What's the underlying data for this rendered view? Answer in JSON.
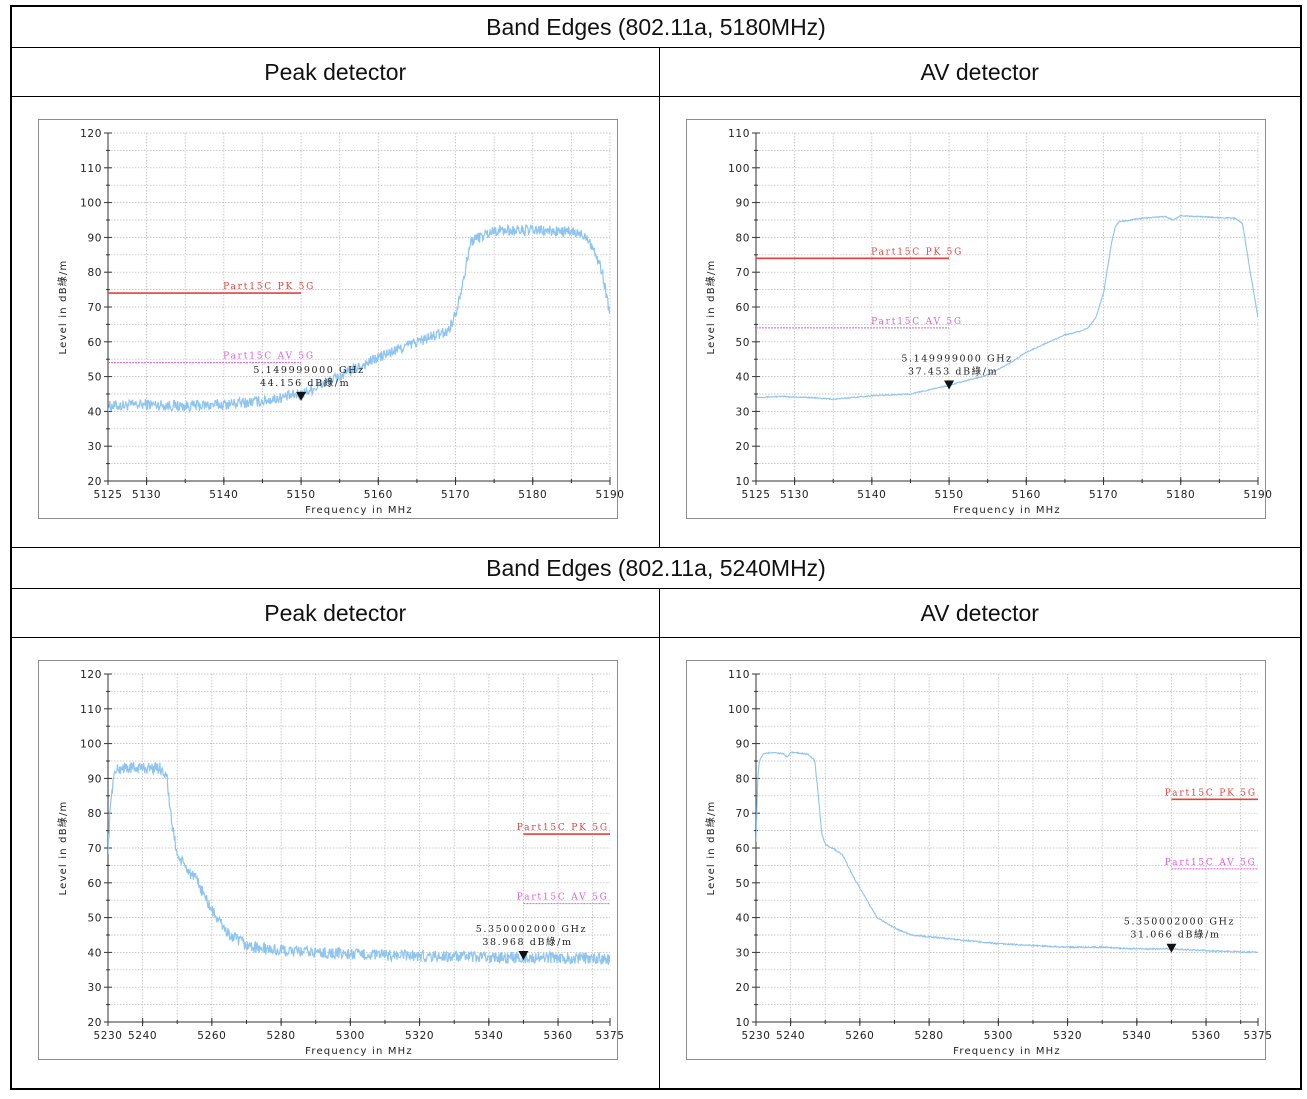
{
  "sections": [
    {
      "title": "Band Edges (802.11a, 5180MHz)",
      "left_label": "Peak detector",
      "right_label": "AV detector"
    },
    {
      "title": "Band Edges (802.11a, 5240MHz)",
      "left_label": "Peak detector",
      "right_label": "AV detector"
    }
  ],
  "colors": {
    "trace": "#8ec4f0",
    "pk_limit": "#e8413c",
    "av_limit": "#e05ce0",
    "marker": "#111111"
  },
  "chart_data": [
    {
      "type": "line",
      "title": "",
      "xlabel": "Frequency in MHz",
      "ylabel": "Level in dB綠/m",
      "xlim": [
        5125,
        5190
      ],
      "ylim": [
        20,
        120
      ],
      "xticks": [
        5125,
        5130,
        5140,
        5150,
        5160,
        5170,
        5180,
        5190
      ],
      "yticks": [
        20,
        30,
        40,
        50,
        60,
        70,
        80,
        90,
        100,
        110,
        120
      ],
      "grid": true,
      "detector": "peak",
      "series": [
        {
          "kind": "trace",
          "noise": 1.6,
          "x": [
            5125,
            5130,
            5135,
            5140,
            5145,
            5150,
            5155,
            5160,
            5165,
            5169,
            5170,
            5171,
            5172,
            5175,
            5180,
            5185,
            5187,
            5188,
            5189,
            5190
          ],
          "y": [
            41.5,
            42,
            41.5,
            42,
            43,
            45,
            50,
            55.5,
            60,
            63,
            68,
            78,
            89,
            92,
            92,
            91.5,
            90.5,
            86,
            80,
            68
          ]
        },
        {
          "kind": "limit",
          "name": "Part15C PK 5G",
          "x": [
            5125,
            5150
          ],
          "y": [
            74,
            74
          ]
        },
        {
          "kind": "limit",
          "name": "Part15C AV 5G",
          "x": [
            5125,
            5150
          ],
          "y": [
            54,
            54
          ]
        }
      ],
      "marker": {
        "x": 5150,
        "y": 44.156,
        "freq_label": "5.149999000 GHz",
        "level_label": "44.156 dB綠/m"
      }
    },
    {
      "type": "line",
      "title": "",
      "xlabel": "Frequency in MHz",
      "ylabel": "Level in dB綠/m",
      "xlim": [
        5125,
        5190
      ],
      "ylim": [
        10,
        110
      ],
      "xticks": [
        5125,
        5130,
        5140,
        5150,
        5160,
        5170,
        5180,
        5190
      ],
      "yticks": [
        10,
        20,
        30,
        40,
        50,
        60,
        70,
        80,
        90,
        100,
        110
      ],
      "grid": true,
      "detector": "average",
      "series": [
        {
          "kind": "trace",
          "noise": 0.15,
          "x": [
            5125,
            5128,
            5132,
            5135,
            5140,
            5145,
            5150,
            5155,
            5158,
            5160,
            5163,
            5165,
            5167,
            5168,
            5169,
            5170,
            5171,
            5171.5,
            5172,
            5175,
            5178,
            5179,
            5180,
            5182,
            5187,
            5188,
            5189,
            5190
          ],
          "y": [
            34,
            34.3,
            34,
            33.5,
            34.5,
            35,
            37.5,
            40.5,
            44,
            47,
            50,
            52,
            53,
            54,
            57,
            64,
            78,
            83,
            84.5,
            85.5,
            86,
            85,
            86.2,
            86,
            85.5,
            84,
            70,
            57
          ]
        },
        {
          "kind": "limit",
          "name": "Part15C PK 5G",
          "x": [
            5125,
            5150
          ],
          "y": [
            74,
            74
          ]
        },
        {
          "kind": "limit",
          "name": "Part15C AV 5G",
          "x": [
            5125,
            5150
          ],
          "y": [
            54,
            54
          ]
        }
      ],
      "marker": {
        "x": 5150,
        "y": 37.453,
        "freq_label": "5.149999000 GHz",
        "level_label": "37.453 dB綠/m"
      }
    },
    {
      "type": "line",
      "title": "",
      "xlabel": "Frequency in MHz",
      "ylabel": "Level in dB綠/m",
      "xlim": [
        5230,
        5375
      ],
      "ylim": [
        20,
        120
      ],
      "xticks": [
        5230,
        5240,
        5260,
        5280,
        5300,
        5320,
        5340,
        5360,
        5375
      ],
      "yticks": [
        20,
        30,
        40,
        50,
        60,
        70,
        80,
        90,
        100,
        110,
        120
      ],
      "grid": true,
      "detector": "peak",
      "series": [
        {
          "kind": "trace",
          "noise": 1.7,
          "x": [
            5230,
            5231,
            5232,
            5234,
            5240,
            5245,
            5247,
            5248,
            5250,
            5252,
            5256,
            5260,
            5265,
            5270,
            5275,
            5280,
            5290,
            5300,
            5320,
            5340,
            5360,
            5375
          ],
          "y": [
            70,
            86,
            92,
            93,
            93,
            93,
            91,
            80,
            68,
            65,
            60,
            52,
            45,
            42,
            41,
            40.5,
            40,
            39.5,
            39,
            38.5,
            38.5,
            38
          ]
        },
        {
          "kind": "limit",
          "name": "Part15C PK 5G",
          "x": [
            5350,
            5375
          ],
          "y": [
            74,
            74
          ]
        },
        {
          "kind": "limit",
          "name": "Part15C AV 5G",
          "x": [
            5350,
            5375
          ],
          "y": [
            54,
            54
          ]
        }
      ],
      "marker": {
        "x": 5350,
        "y": 38.968,
        "freq_label": "5.350002000 GHz",
        "level_label": "38.968 dB綠/m"
      }
    },
    {
      "type": "line",
      "title": "",
      "xlabel": "Frequency in MHz",
      "ylabel": "Level in dB綠/m",
      "xlim": [
        5230,
        5375
      ],
      "ylim": [
        10,
        110
      ],
      "xticks": [
        5230,
        5240,
        5260,
        5280,
        5300,
        5320,
        5340,
        5360,
        5375
      ],
      "yticks": [
        10,
        20,
        30,
        40,
        50,
        60,
        70,
        80,
        90,
        100,
        110
      ],
      "grid": true,
      "detector": "average",
      "series": [
        {
          "kind": "trace",
          "noise": 0.2,
          "x": [
            5230,
            5230.5,
            5231,
            5232,
            5235,
            5238,
            5239,
            5240,
            5245,
            5247,
            5248,
            5249,
            5250,
            5252,
            5255,
            5258,
            5262,
            5265,
            5270,
            5275,
            5280,
            5290,
            5300,
            5310,
            5320,
            5330,
            5340,
            5350,
            5360,
            5375
          ],
          "y": [
            62,
            80,
            85,
            87,
            87.5,
            87,
            86,
            87.5,
            87,
            85,
            75,
            64,
            61,
            60,
            58,
            52,
            45,
            40,
            37,
            35,
            34.5,
            33.5,
            32.5,
            32,
            31.5,
            31.5,
            31,
            31,
            30.5,
            30
          ]
        },
        {
          "kind": "limit",
          "name": "Part15C PK 5G",
          "x": [
            5350,
            5375
          ],
          "y": [
            74,
            74
          ]
        },
        {
          "kind": "limit",
          "name": "Part15C AV 5G",
          "x": [
            5350,
            5375
          ],
          "y": [
            54,
            54
          ]
        }
      ],
      "marker": {
        "x": 5350,
        "y": 31.066,
        "freq_label": "5.350002000 GHz",
        "level_label": "31.066 dB綠/m"
      }
    }
  ]
}
